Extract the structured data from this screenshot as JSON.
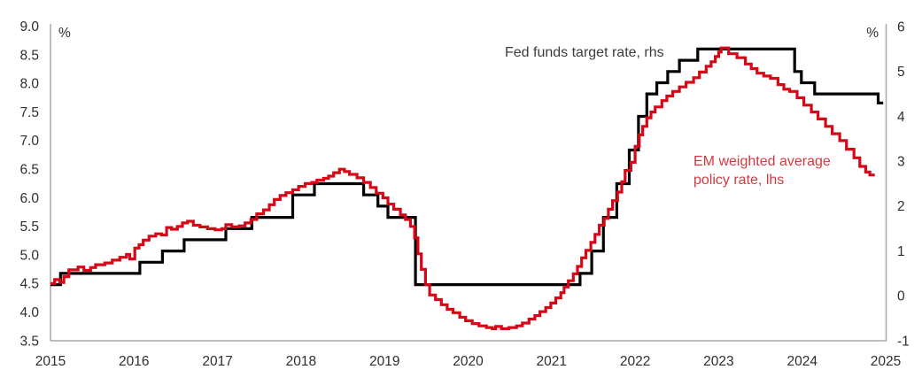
{
  "legend": {
    "fed": "Fed funds target rate, rhs",
    "em_line1": "EM weighted average",
    "em_line2": "policy rate, lhs"
  },
  "chart_data": {
    "type": "line",
    "style": "step",
    "grid": false,
    "legend_position": "annotations-inside-plot",
    "left_axis": {
      "unit": "%",
      "min": 3.5,
      "max": 9.0,
      "tick_step": 0.5,
      "ticks": [
        "9.0",
        "8.5",
        "8.0",
        "7.5",
        "7.0",
        "6.5",
        "6.0",
        "5.5",
        "5.0",
        "4.5",
        "4.0",
        "3.5"
      ]
    },
    "right_axis": {
      "unit": "%",
      "min": -1,
      "max": 6,
      "tick_step": 1,
      "ticks": [
        "6",
        "5",
        "4",
        "3",
        "2",
        "1",
        "0",
        "-1"
      ]
    },
    "x_axis": {
      "min": 2015,
      "max": 2025,
      "ticks": [
        "2015",
        "2016",
        "2017",
        "2018",
        "2019",
        "2020",
        "2021",
        "2022",
        "2023",
        "2024",
        "2025"
      ]
    },
    "colors": {
      "fed_line": "#000000",
      "em_line": "#d60818",
      "axis": "#a8a8a8"
    },
    "series": [
      {
        "name": "Fed funds target rate, rhs",
        "axis": "right",
        "color": "#000000",
        "end_x": 2024.97,
        "points": [
          [
            2015.0,
            0.25
          ],
          [
            2015.12,
            0.5
          ],
          [
            2016.07,
            0.75
          ],
          [
            2016.34,
            1.0
          ],
          [
            2016.6,
            1.25
          ],
          [
            2017.1,
            1.5
          ],
          [
            2017.41,
            1.75
          ],
          [
            2017.9,
            2.25
          ],
          [
            2018.16,
            2.5
          ],
          [
            2018.75,
            2.25
          ],
          [
            2018.92,
            2.0
          ],
          [
            2019.04,
            1.75
          ],
          [
            2019.37,
            0.25
          ],
          [
            2021.34,
            0.5
          ],
          [
            2021.48,
            1.0
          ],
          [
            2021.62,
            1.75
          ],
          [
            2021.78,
            2.5
          ],
          [
            2021.93,
            3.25
          ],
          [
            2022.04,
            4.0
          ],
          [
            2022.14,
            4.5
          ],
          [
            2022.26,
            4.75
          ],
          [
            2022.39,
            5.0
          ],
          [
            2022.53,
            5.25
          ],
          [
            2022.75,
            5.5
          ],
          [
            2023.91,
            5.0
          ],
          [
            2023.99,
            4.75
          ],
          [
            2024.15,
            4.5
          ],
          [
            2024.91,
            4.3
          ]
        ]
      },
      {
        "name": "EM weighted average policy rate, lhs",
        "axis": "left",
        "color": "#d60818",
        "end_x": 2024.87,
        "points": [
          [
            2015.0,
            4.5
          ],
          [
            2015.05,
            4.57
          ],
          [
            2015.11,
            4.52
          ],
          [
            2015.16,
            4.62
          ],
          [
            2015.22,
            4.74
          ],
          [
            2015.33,
            4.79
          ],
          [
            2015.4,
            4.73
          ],
          [
            2015.48,
            4.78
          ],
          [
            2015.54,
            4.83
          ],
          [
            2015.65,
            4.86
          ],
          [
            2015.74,
            4.91
          ],
          [
            2015.83,
            4.96
          ],
          [
            2015.91,
            5.01
          ],
          [
            2015.95,
            4.93
          ],
          [
            2016.01,
            5.12
          ],
          [
            2016.06,
            5.18
          ],
          [
            2016.11,
            5.26
          ],
          [
            2016.18,
            5.33
          ],
          [
            2016.26,
            5.37
          ],
          [
            2016.33,
            5.35
          ],
          [
            2016.39,
            5.48
          ],
          [
            2016.45,
            5.45
          ],
          [
            2016.52,
            5.5
          ],
          [
            2016.58,
            5.56
          ],
          [
            2016.64,
            5.59
          ],
          [
            2016.71,
            5.52
          ],
          [
            2016.79,
            5.49
          ],
          [
            2016.88,
            5.46
          ],
          [
            2016.97,
            5.44
          ],
          [
            2017.05,
            5.46
          ],
          [
            2017.1,
            5.53
          ],
          [
            2017.17,
            5.49
          ],
          [
            2017.26,
            5.51
          ],
          [
            2017.33,
            5.56
          ],
          [
            2017.4,
            5.62
          ],
          [
            2017.47,
            5.72
          ],
          [
            2017.55,
            5.79
          ],
          [
            2017.62,
            5.88
          ],
          [
            2017.68,
            5.97
          ],
          [
            2017.75,
            6.04
          ],
          [
            2017.82,
            6.09
          ],
          [
            2017.9,
            6.14
          ],
          [
            2017.97,
            6.2
          ],
          [
            2018.05,
            6.25
          ],
          [
            2018.13,
            6.27
          ],
          [
            2018.19,
            6.31
          ],
          [
            2018.27,
            6.34
          ],
          [
            2018.33,
            6.38
          ],
          [
            2018.39,
            6.44
          ],
          [
            2018.46,
            6.5
          ],
          [
            2018.52,
            6.46
          ],
          [
            2018.58,
            6.41
          ],
          [
            2018.67,
            6.35
          ],
          [
            2018.75,
            6.27
          ],
          [
            2018.83,
            6.18
          ],
          [
            2018.9,
            6.08
          ],
          [
            2018.98,
            6.0
          ],
          [
            2019.04,
            5.89
          ],
          [
            2019.11,
            5.8
          ],
          [
            2019.19,
            5.7
          ],
          [
            2019.25,
            5.62
          ],
          [
            2019.31,
            5.5
          ],
          [
            2019.36,
            5.3
          ],
          [
            2019.4,
            5.02
          ],
          [
            2019.44,
            4.75
          ],
          [
            2019.49,
            4.48
          ],
          [
            2019.54,
            4.3
          ],
          [
            2019.61,
            4.22
          ],
          [
            2019.68,
            4.13
          ],
          [
            2019.75,
            4.05
          ],
          [
            2019.82,
            3.99
          ],
          [
            2019.9,
            3.91
          ],
          [
            2019.97,
            3.85
          ],
          [
            2020.05,
            3.8
          ],
          [
            2020.13,
            3.76
          ],
          [
            2020.22,
            3.73
          ],
          [
            2020.29,
            3.71
          ],
          [
            2020.33,
            3.75
          ],
          [
            2020.4,
            3.71
          ],
          [
            2020.49,
            3.73
          ],
          [
            2020.58,
            3.76
          ],
          [
            2020.65,
            3.81
          ],
          [
            2020.73,
            3.88
          ],
          [
            2020.8,
            3.94
          ],
          [
            2020.86,
            4.01
          ],
          [
            2020.93,
            4.08
          ],
          [
            2020.99,
            4.16
          ],
          [
            2021.05,
            4.25
          ],
          [
            2021.11,
            4.34
          ],
          [
            2021.15,
            4.44
          ],
          [
            2021.2,
            4.55
          ],
          [
            2021.26,
            4.67
          ],
          [
            2021.31,
            4.8
          ],
          [
            2021.36,
            4.95
          ],
          [
            2021.41,
            5.08
          ],
          [
            2021.47,
            5.22
          ],
          [
            2021.52,
            5.36
          ],
          [
            2021.57,
            5.52
          ],
          [
            2021.63,
            5.64
          ],
          [
            2021.68,
            5.8
          ],
          [
            2021.73,
            5.95
          ],
          [
            2021.79,
            6.1
          ],
          [
            2021.84,
            6.28
          ],
          [
            2021.88,
            6.48
          ],
          [
            2021.95,
            6.62
          ],
          [
            2022.0,
            6.9
          ],
          [
            2022.05,
            7.1
          ],
          [
            2022.09,
            7.25
          ],
          [
            2022.14,
            7.4
          ],
          [
            2022.19,
            7.5
          ],
          [
            2022.24,
            7.59
          ],
          [
            2022.32,
            7.7
          ],
          [
            2022.38,
            7.78
          ],
          [
            2022.45,
            7.86
          ],
          [
            2022.53,
            7.94
          ],
          [
            2022.61,
            8.02
          ],
          [
            2022.7,
            8.1
          ],
          [
            2022.77,
            8.2
          ],
          [
            2022.85,
            8.3
          ],
          [
            2022.91,
            8.38
          ],
          [
            2022.96,
            8.47
          ],
          [
            2023.0,
            8.55
          ],
          [
            2023.03,
            8.62
          ],
          [
            2023.12,
            8.52
          ],
          [
            2023.22,
            8.45
          ],
          [
            2023.32,
            8.34
          ],
          [
            2023.39,
            8.26
          ],
          [
            2023.46,
            8.18
          ],
          [
            2023.54,
            8.13
          ],
          [
            2023.62,
            8.09
          ],
          [
            2023.71,
            7.98
          ],
          [
            2023.78,
            7.9
          ],
          [
            2023.85,
            7.86
          ],
          [
            2023.94,
            7.75
          ],
          [
            2024.02,
            7.62
          ],
          [
            2024.11,
            7.5
          ],
          [
            2024.19,
            7.38
          ],
          [
            2024.28,
            7.25
          ],
          [
            2024.36,
            7.12
          ],
          [
            2024.45,
            7.0
          ],
          [
            2024.53,
            6.85
          ],
          [
            2024.62,
            6.7
          ],
          [
            2024.69,
            6.55
          ],
          [
            2024.76,
            6.45
          ],
          [
            2024.81,
            6.4
          ]
        ]
      }
    ]
  }
}
